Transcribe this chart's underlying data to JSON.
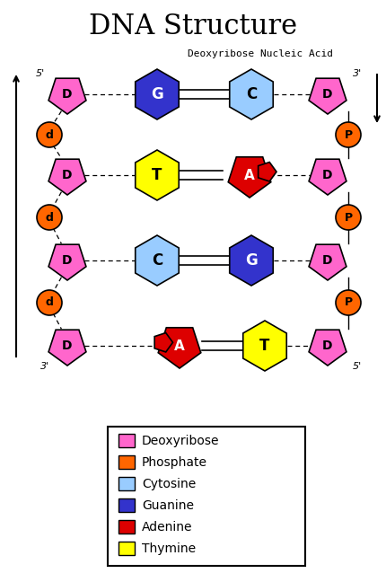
{
  "title": "DNA Structure",
  "subtitle": "Deoxyribose Nucleic Acid",
  "bg_color": "#ffffff",
  "title_fontsize": 22,
  "subtitle_fontsize": 8,
  "colors": {
    "deoxyribose": "#FF66CC",
    "phosphate": "#FF6600",
    "cytosine": "#99CCFF",
    "guanine": "#3333CC",
    "adenine": "#DD0000",
    "thymine": "#FFFF00"
  },
  "legend_items": [
    [
      "Deoxyribose",
      "#FF66CC"
    ],
    [
      "Phosphate",
      "#FF6600"
    ],
    [
      "Cytosine",
      "#99CCFF"
    ],
    [
      "Guanine",
      "#3333CC"
    ],
    [
      "Adenine",
      "#DD0000"
    ],
    [
      "Thymine",
      "#FFFF00"
    ]
  ]
}
